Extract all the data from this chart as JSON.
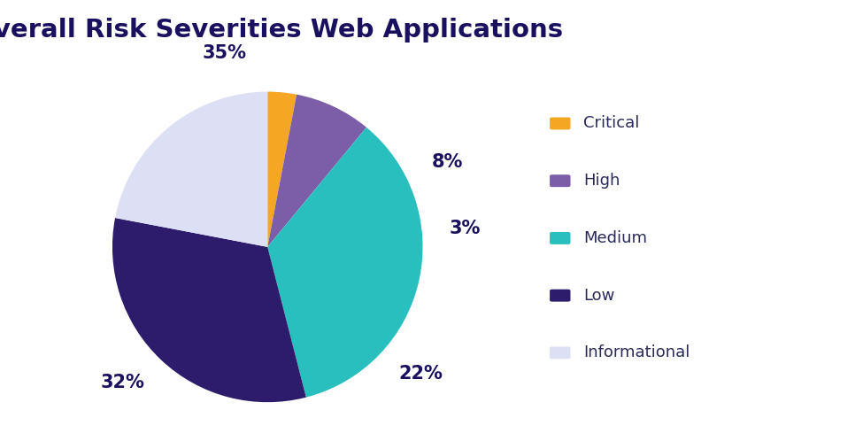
{
  "title": "Overall Risk Severities Web Applications",
  "title_fontsize": 21,
  "title_color": "#1a1060",
  "title_fontweight": "bold",
  "labels": [
    "Critical",
    "High",
    "Medium",
    "Low",
    "Informational"
  ],
  "values": [
    3,
    8,
    35,
    32,
    22
  ],
  "colors": [
    "#F5A623",
    "#7B5EA7",
    "#29BFBF",
    "#2D1B6B",
    "#DDE0F5"
  ],
  "pct_labels": [
    "3%",
    "8%",
    "35%",
    "32%",
    "22%"
  ],
  "pct_color": "#1a1060",
  "pct_fontsize": 15,
  "pct_fontweight": "bold",
  "legend_fontsize": 13,
  "legend_color": "#2a2a5a",
  "background_color": "#ffffff",
  "startangle": 90
}
